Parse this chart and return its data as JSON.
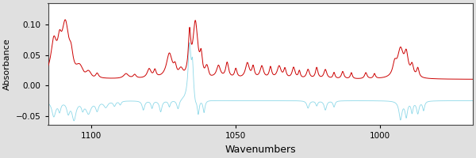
{
  "xlabel": "Wavenumbers",
  "ylabel": "Absorbance",
  "xlim": [
    1115,
    968
  ],
  "ylim": [
    -0.065,
    0.135
  ],
  "yticks": [
    -0.05,
    0.0,
    0.05,
    0.1
  ],
  "xticks": [
    1100,
    1050,
    1000
  ],
  "background_color": "#e0e0e0",
  "plot_bg_color": "#ffffff",
  "water_color": "#8dd8e8",
  "sample_color": "#cc0000",
  "linewidth_water": 0.6,
  "linewidth_sample": 0.7,
  "xlabel_fontsize": 9,
  "ylabel_fontsize": 8,
  "tick_fontsize": 7.5
}
